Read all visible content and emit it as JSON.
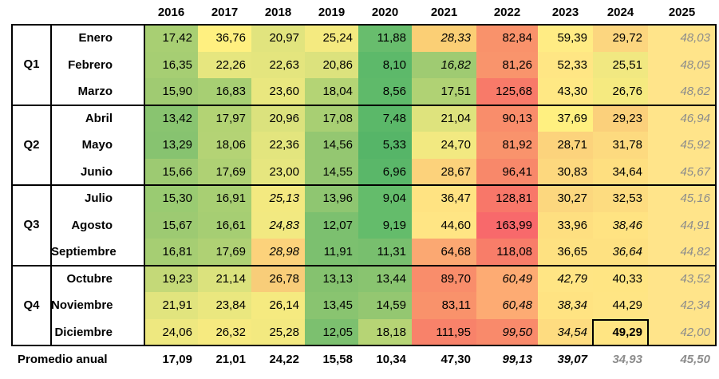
{
  "years": [
    "2016",
    "2017",
    "2018",
    "2019",
    "2020",
    "2021",
    "2022",
    "2023",
    "2024",
    "2025"
  ],
  "quarters": [
    {
      "label": "Q1",
      "months": [
        {
          "name": "Enero",
          "values": [
            "17,42",
            "36,76",
            "20,97",
            "25,24",
            "11,88",
            "28,33",
            "82,84",
            "59,39",
            "29,72",
            "48,03"
          ],
          "colors": [
            "#a8cf73",
            "#fff080",
            "#e1e47e",
            "#f4ea80",
            "#68bd6d",
            "#fbcf75",
            "#f9926b",
            "#ffec84",
            "#fcd67f",
            "#ffe48a"
          ],
          "italic": [
            false,
            false,
            false,
            false,
            false,
            true,
            false,
            false,
            false,
            true
          ]
        },
        {
          "name": "Febrero",
          "values": [
            "16,35",
            "22,26",
            "22,63",
            "20,86",
            "8,10",
            "16,82",
            "81,26",
            "52,33",
            "25,51",
            "48,05"
          ],
          "colors": [
            "#a6ce73",
            "#e6e67f",
            "#e4e57e",
            "#dce27d",
            "#5db96a",
            "#9fcb72",
            "#f9946c",
            "#ffe684",
            "#f1e881",
            "#ffe48a"
          ],
          "italic": [
            false,
            false,
            false,
            false,
            false,
            true,
            false,
            false,
            false,
            true
          ]
        },
        {
          "name": "Marzo",
          "values": [
            "15,90",
            "16,83",
            "23,60",
            "18,04",
            "8,56",
            "17,51",
            "125,68",
            "43,30",
            "26,76",
            "48,62"
          ],
          "colors": [
            "#a0cb72",
            "#a7cf73",
            "#e9e77f",
            "#b4d475",
            "#5fba6a",
            "#b0d274",
            "#f87a69",
            "#ffe884",
            "#f5ea80",
            "#ffe48a"
          ],
          "italic": [
            false,
            false,
            false,
            false,
            false,
            false,
            false,
            false,
            false,
            true
          ]
        }
      ]
    },
    {
      "label": "Q2",
      "months": [
        {
          "name": "Abril",
          "values": [
            "13,42",
            "17,97",
            "20,96",
            "17,08",
            "7,48",
            "21,04",
            "90,13",
            "37,69",
            "29,23",
            "46,94"
          ],
          "colors": [
            "#89c470",
            "#b3d374",
            "#dbe27d",
            "#a8cf73",
            "#5bb869",
            "#deE37d",
            "#f98d6b",
            "#fff080",
            "#fbd07b",
            "#ffe48a"
          ],
          "italic": [
            false,
            false,
            false,
            false,
            false,
            false,
            false,
            false,
            false,
            true
          ]
        },
        {
          "name": "Mayo",
          "values": [
            "13,29",
            "18,06",
            "22,36",
            "14,56",
            "5,33",
            "24,70",
            "81,92",
            "28,71",
            "31,78",
            "45,92"
          ],
          "colors": [
            "#87c370",
            "#b4d375",
            "#e3e57e",
            "#94c771",
            "#56b568",
            "#f2e981",
            "#f9936c",
            "#fcd37c",
            "#fdda7f",
            "#ffe48a"
          ],
          "italic": [
            false,
            false,
            false,
            false,
            false,
            false,
            false,
            false,
            false,
            true
          ]
        },
        {
          "name": "Junio",
          "values": [
            "15,66",
            "17,69",
            "23,00",
            "14,55",
            "6,96",
            "28,67",
            "96,41",
            "30,83",
            "34,64",
            "45,67"
          ],
          "colors": [
            "#9dca72",
            "#afd174",
            "#e6e67f",
            "#94c771",
            "#5ab769",
            "#fcd27b",
            "#f8886a",
            "#fdd87e",
            "#fedf80",
            "#ffe48a"
          ],
          "italic": [
            false,
            false,
            false,
            false,
            false,
            false,
            false,
            false,
            false,
            true
          ]
        }
      ]
    },
    {
      "label": "Q3",
      "months": [
        {
          "name": "Julio",
          "values": [
            "15,30",
            "16,91",
            "25,13",
            "13,96",
            "9,04",
            "36,47",
            "128,81",
            "30,27",
            "32,53",
            "45,16"
          ],
          "colors": [
            "#9acb72",
            "#a8cf73",
            "#f3e980",
            "#8fc671",
            "#64bc6b",
            "#ffe382",
            "#f87769",
            "#fcd77e",
            "#fddc80",
            "#ffe48a"
          ],
          "italic": [
            false,
            false,
            true,
            false,
            false,
            false,
            false,
            false,
            false,
            true
          ]
        },
        {
          "name": "Agosto",
          "values": [
            "15,67",
            "16,61",
            "24,83",
            "12,07",
            "9,19",
            "44,60",
            "163,99",
            "33,96",
            "38,46",
            "44,91"
          ],
          "colors": [
            "#9dca72",
            "#a6ce73",
            "#f2e981",
            "#7cc06f",
            "#64bc6b",
            "#ffe584",
            "#f8696b",
            "#fedf80",
            "#ffe382",
            "#ffe48a"
          ],
          "italic": [
            false,
            false,
            true,
            false,
            false,
            false,
            false,
            false,
            true,
            true
          ]
        },
        {
          "name": "Septiembre",
          "values": [
            "16,81",
            "17,69",
            "28,98",
            "11,91",
            "11,31",
            "64,68",
            "118,08",
            "36,65",
            "36,64",
            "44,82"
          ],
          "colors": [
            "#a6ce73",
            "#afd174",
            "#fcd27b",
            "#7cc06f",
            "#78bf6e",
            "#fba872",
            "#f87d69",
            "#fee181",
            "#fee181",
            "#ffe48a"
          ],
          "italic": [
            false,
            false,
            true,
            false,
            false,
            false,
            false,
            false,
            true,
            true
          ]
        }
      ]
    },
    {
      "label": "Q4",
      "months": [
        {
          "name": "Octubre",
          "values": [
            "19,23",
            "21,14",
            "26,78",
            "13,13",
            "13,44",
            "89,70",
            "60,49",
            "42,79",
            "40,33",
            "43,52"
          ],
          "colors": [
            "#c4d978",
            "#dbe27d",
            "#f8cd79",
            "#85c26f",
            "#89c470",
            "#f98d6b",
            "#fdab73",
            "#ffe584",
            "#ffe583",
            "#ffe48a"
          ],
          "italic": [
            false,
            false,
            false,
            false,
            false,
            false,
            true,
            true,
            false,
            true
          ]
        },
        {
          "name": "Noviembre",
          "values": [
            "21,91",
            "23,84",
            "26,14",
            "13,45",
            "14,59",
            "83,11",
            "60,48",
            "38,34",
            "44,29",
            "42,34"
          ],
          "colors": [
            "#e1e47e",
            "#eae77f",
            "#f5ea80",
            "#89c470",
            "#94c771",
            "#f9926b",
            "#fdab73",
            "#ffe382",
            "#ffe584",
            "#ffe48a"
          ],
          "italic": [
            false,
            false,
            false,
            false,
            false,
            false,
            true,
            true,
            false,
            true
          ]
        },
        {
          "name": "Diciembre",
          "values": [
            "24,06",
            "26,32",
            "25,28",
            "12,05",
            "18,18",
            "111,95",
            "99,50",
            "34,54",
            "49,29",
            "42,00"
          ],
          "colors": [
            "#eee880",
            "#f6ea80",
            "#f3e980",
            "#7cc06f",
            "#b6d475",
            "#f8826a",
            "#f98a6b",
            "#fedc80",
            "#ffe583",
            "#ffe48a"
          ],
          "italic": [
            false,
            false,
            false,
            false,
            false,
            false,
            true,
            true,
            false,
            true
          ],
          "bold": [
            false,
            false,
            false,
            false,
            false,
            false,
            false,
            false,
            true,
            false
          ]
        }
      ]
    }
  ],
  "average": {
    "label": "Promedio anual",
    "values": [
      "17,09",
      "21,01",
      "24,22",
      "15,58",
      "10,34",
      "47,30",
      "99,13",
      "39,07",
      "34,93",
      "45,50"
    ],
    "italic": [
      false,
      false,
      false,
      false,
      false,
      false,
      true,
      true,
      true,
      true
    ],
    "gray": [
      false,
      false,
      false,
      false,
      false,
      false,
      false,
      false,
      true,
      true
    ]
  }
}
